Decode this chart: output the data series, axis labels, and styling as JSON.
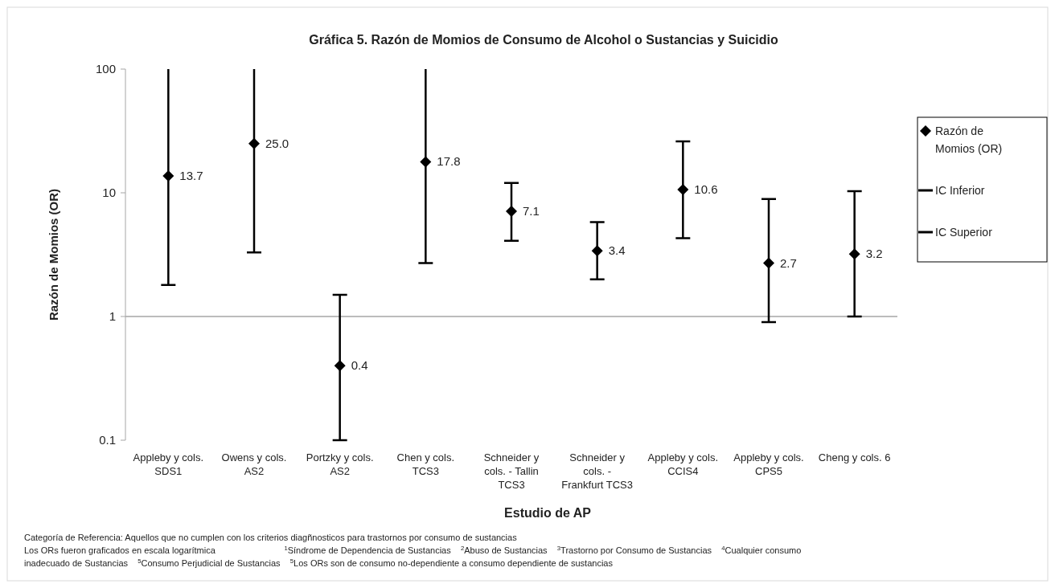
{
  "chart_data": {
    "type": "scatter",
    "title": "Gráfica 5.  Razón de Momios de Consumo de Alcohol o Sustancias y Suicidio",
    "xlabel": "Estudio de AP",
    "ylabel": "Razón de Momios (OR)",
    "categories": [
      "Appleby y cols. SDS1",
      "Owens y cols. AS2",
      "Portzky y cols. AS2",
      "Chen y cols. TCS3",
      "Schneider y cols. - Tallin TCS3",
      "Schneider y cols. - Frankfurt TCS3",
      "Appleby y cols. CCIS4",
      "Appleby y cols. CPS5",
      "Cheng y cols. 6"
    ],
    "series": [
      {
        "name": "Razón de Momios (OR)",
        "color": "#000000",
        "marker": "diamond",
        "values": [
          13.7,
          25.0,
          0.4,
          17.8,
          7.1,
          3.4,
          10.6,
          2.7,
          3.2
        ],
        "value_labels": [
          "13.7",
          "25.0",
          "0.4",
          "17.8",
          "7.1",
          "3.4",
          "10.6",
          "2.7",
          "3.2"
        ],
        "errors": [
          [
            1.8,
            100
          ],
          [
            3.3,
            100
          ],
          [
            0.1,
            1.5
          ],
          [
            2.7,
            100
          ],
          [
            4.1,
            12
          ],
          [
            2,
            5.8
          ],
          [
            4.3,
            26
          ],
          [
            0.9,
            8.9
          ],
          [
            1,
            10.3
          ]
        ]
      },
      {
        "name": "IC Inferior",
        "color": "#000000",
        "marker": "none",
        "values": [
          null,
          null,
          null,
          null,
          null,
          null,
          null,
          null,
          null
        ]
      },
      {
        "name": "IC Superior",
        "color": "#000000",
        "marker": "none",
        "values": [
          null,
          null,
          null,
          null,
          null,
          null,
          null,
          null,
          null
        ]
      }
    ],
    "log": true,
    "ylim": [
      0.1,
      100
    ],
    "yticks": [
      0.1,
      1,
      10,
      100
    ],
    "grid": false,
    "legend": "right",
    "ref_lines": [
      {
        "axis": "y",
        "value": 1,
        "color": "#a6a6a6"
      }
    ],
    "annotations": [
      "Categoría de Referencia: Aquellos que no cumplen con los criterios diagñnosticos para trastornos por consumo de sustancias",
      "Los ORs fueron graficados en escala logarítmica",
      "$^{1}$Síndrome de Dependencia de Sustancias",
      "$^{2}$Abuso de Sustancias",
      "$^{3}$Trastorno por Consumo de Sustancias",
      "$^{4}$Cualquier consumo inadecuado de Sustancias",
      "$^{5}$Consumo Perjudicial de Sustancias",
      "$^{5}$Los ORs son de consumo no-dependiente a consumo dependiente de sustancias"
    ]
  }
}
